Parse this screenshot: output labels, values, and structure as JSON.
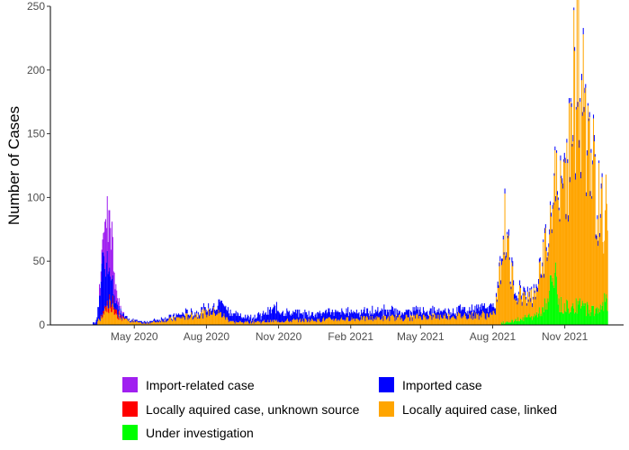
{
  "chart_data": {
    "type": "bar",
    "stacked": true,
    "ylabel": "Number of Cases",
    "xlabel": "",
    "ylim": [
      0,
      250
    ],
    "y_ticks": [
      0,
      50,
      100,
      150,
      200,
      250
    ],
    "x_range": [
      "2020-01-15",
      "2022-01-15"
    ],
    "x_ticks": [
      {
        "date": "2020-05-01",
        "label": "May 2020"
      },
      {
        "date": "2020-08-01",
        "label": "Aug 2020"
      },
      {
        "date": "2020-11-01",
        "label": "Nov 2020"
      },
      {
        "date": "2021-02-01",
        "label": "Feb 2021"
      },
      {
        "date": "2021-05-01",
        "label": "May 2021"
      },
      {
        "date": "2021-08-01",
        "label": "Aug 2021"
      },
      {
        "date": "2021-11-01",
        "label": "Nov 2021"
      }
    ],
    "grid": false,
    "legend_position": "bottom",
    "series": [
      {
        "name": "Import-related case",
        "color": "#A020F0",
        "points": [
          [
            "2020-03-20",
            8
          ],
          [
            "2020-03-24",
            30
          ],
          [
            "2020-03-27",
            38
          ],
          [
            "2020-03-30",
            45
          ],
          [
            "2020-04-02",
            32
          ],
          [
            "2020-04-05",
            15
          ],
          [
            "2020-04-09",
            6
          ],
          [
            "2020-04-14",
            2
          ]
        ]
      },
      {
        "name": "Imported case",
        "color": "#0000FF",
        "points": [
          [
            "2020-03-12",
            2
          ],
          [
            "2020-03-16",
            10
          ],
          [
            "2020-03-20",
            30
          ],
          [
            "2020-03-23",
            45
          ],
          [
            "2020-03-26",
            35
          ],
          [
            "2020-03-29",
            25
          ],
          [
            "2020-04-02",
            15
          ],
          [
            "2020-04-06",
            8
          ],
          [
            "2020-04-12",
            4
          ],
          [
            "2020-04-20",
            2
          ],
          [
            "2020-05-05",
            1
          ],
          [
            "2020-06-20",
            2
          ],
          [
            "2020-07-05",
            3
          ],
          [
            "2020-07-20",
            2
          ],
          [
            "2020-08-10",
            5
          ],
          [
            "2020-08-20",
            10
          ],
          [
            "2020-09-05",
            6
          ],
          [
            "2020-09-25",
            4
          ],
          [
            "2020-10-10",
            5
          ],
          [
            "2020-10-28",
            10
          ],
          [
            "2020-11-15",
            6
          ],
          [
            "2020-12-10",
            5
          ],
          [
            "2021-01-05",
            6
          ],
          [
            "2021-01-20",
            5
          ],
          [
            "2021-02-05",
            6
          ],
          [
            "2021-02-20",
            5
          ],
          [
            "2021-03-10",
            6
          ],
          [
            "2021-03-25",
            5
          ],
          [
            "2021-04-10",
            4
          ],
          [
            "2021-04-28",
            5
          ],
          [
            "2021-05-15",
            4
          ],
          [
            "2021-06-05",
            4
          ],
          [
            "2021-06-25",
            5
          ],
          [
            "2021-07-10",
            5
          ],
          [
            "2021-07-25",
            7
          ],
          [
            "2021-08-05",
            4
          ],
          [
            "2021-08-25",
            3
          ],
          [
            "2021-09-20",
            3
          ],
          [
            "2021-10-20",
            3
          ],
          [
            "2021-11-20",
            4
          ],
          [
            "2021-12-15",
            3
          ]
        ]
      },
      {
        "name": "Locally aquired case, unknown source",
        "color": "#FF0000",
        "points": [
          [
            "2020-03-22",
            2
          ],
          [
            "2020-03-27",
            4
          ],
          [
            "2020-04-02",
            5
          ],
          [
            "2020-04-08",
            3
          ],
          [
            "2020-04-15",
            1
          ]
        ]
      },
      {
        "name": "Locally aquired case, linked",
        "color": "#FFA500",
        "points": [
          [
            "2020-03-18",
            5
          ],
          [
            "2020-03-24",
            12
          ],
          [
            "2020-03-29",
            15
          ],
          [
            "2020-04-03",
            12
          ],
          [
            "2020-04-08",
            8
          ],
          [
            "2020-04-15",
            5
          ],
          [
            "2020-04-25",
            3
          ],
          [
            "2020-05-05",
            2
          ],
          [
            "2020-05-15",
            1
          ],
          [
            "2020-08-08",
            10
          ],
          [
            "2020-08-15",
            10
          ],
          [
            "2020-08-22",
            7
          ],
          [
            "2020-08-29",
            4
          ],
          [
            "2020-09-05",
            2
          ],
          [
            "2021-08-03",
            8
          ],
          [
            "2021-08-10",
            40
          ],
          [
            "2021-08-15",
            75
          ],
          [
            "2021-08-20",
            55
          ],
          [
            "2021-08-25",
            32
          ],
          [
            "2021-09-01",
            22
          ],
          [
            "2021-09-10",
            17
          ],
          [
            "2021-09-18",
            15
          ],
          [
            "2021-09-25",
            18
          ],
          [
            "2021-10-05",
            42
          ],
          [
            "2021-10-12",
            52
          ],
          [
            "2021-10-20",
            70
          ],
          [
            "2021-10-28",
            92
          ],
          [
            "2021-11-05",
            120
          ],
          [
            "2021-11-10",
            165
          ],
          [
            "2021-11-15",
            175
          ],
          [
            "2021-11-20",
            170
          ],
          [
            "2021-11-25",
            150
          ],
          [
            "2021-12-01",
            120
          ],
          [
            "2021-12-08",
            100
          ],
          [
            "2021-12-15",
            80
          ],
          [
            "2021-12-22",
            70
          ]
        ]
      },
      {
        "name": "Under investigation",
        "color": "#00FF00",
        "points": [
          [
            "2021-08-15",
            2
          ],
          [
            "2021-08-25",
            3
          ],
          [
            "2021-09-05",
            5
          ],
          [
            "2021-09-20",
            7
          ],
          [
            "2021-10-01",
            10
          ],
          [
            "2021-10-10",
            20
          ],
          [
            "2021-10-18",
            42
          ],
          [
            "2021-10-25",
            15
          ],
          [
            "2021-11-05",
            15
          ],
          [
            "2021-11-15",
            15
          ],
          [
            "2021-11-25",
            14
          ],
          [
            "2021-12-05",
            12
          ],
          [
            "2021-12-15",
            12
          ],
          [
            "2021-12-22",
            20
          ]
        ]
      }
    ]
  },
  "legend": {
    "items": [
      {
        "label": "Import-related case",
        "color": "#A020F0"
      },
      {
        "label": "Imported case",
        "color": "#0000FF"
      },
      {
        "label": "Locally aquired case, unknown source",
        "color": "#FF0000"
      },
      {
        "label": "Locally aquired case, linked",
        "color": "#FFA500"
      },
      {
        "label": "Under investigation",
        "color": "#00FF00"
      }
    ]
  }
}
